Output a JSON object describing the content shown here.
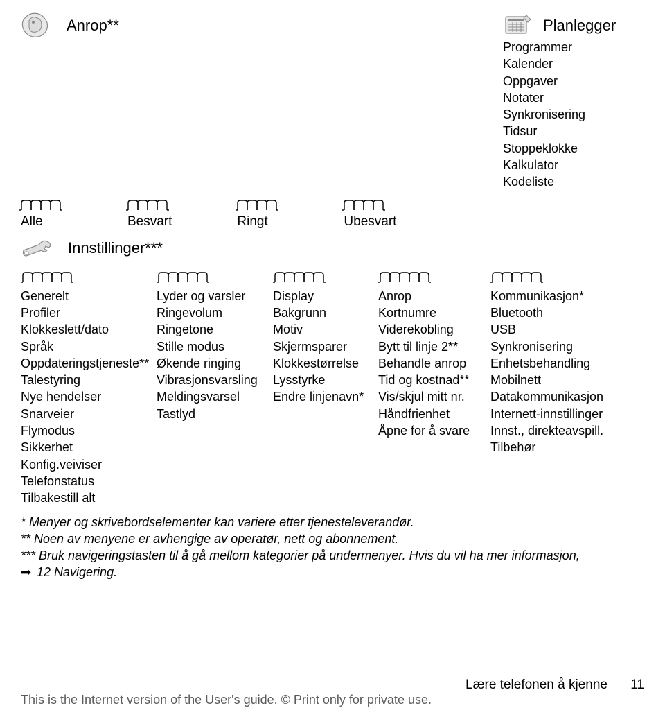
{
  "colors": {
    "text": "#000000",
    "icon_stroke": "#8a8a8a",
    "icon_fill": "#dcdcdc",
    "footer_gray": "#5b5b5b",
    "background": "#ffffff"
  },
  "fonts": {
    "body_size_pt": 14,
    "title_size_pt": 16
  },
  "anrop_section": {
    "title": "Anrop**",
    "tabs": [
      "Alle",
      "Besvart",
      "Ringt",
      "Ubesvart"
    ],
    "tab_count_each_row": 4
  },
  "planner_section": {
    "title": "Planlegger",
    "items": [
      "Programmer",
      "Kalender",
      "Oppgaver",
      "Notater",
      "Synkronisering",
      "Tidsur",
      "Stoppeklokke",
      "Kalkulator",
      "Kodeliste"
    ]
  },
  "settings_section": {
    "title": "Innstillinger***",
    "columns": [
      {
        "tab_count": 5,
        "header": "Generelt",
        "items": [
          "Profiler",
          "Klokkeslett/dato",
          "Språk",
          "Oppdateringstjeneste**",
          "Talestyring",
          "Nye hendelser",
          "Snarveier",
          "Flymodus",
          "Sikkerhet",
          "Konfig.veiviser",
          "Telefonstatus",
          "Tilbakestill alt"
        ]
      },
      {
        "tab_count": 5,
        "header": "Lyder og varsler",
        "items": [
          "Ringevolum",
          "Ringetone",
          "Stille modus",
          "Økende ringing",
          "Vibrasjonsvarsling",
          "Meldingsvarsel",
          "Tastlyd"
        ]
      },
      {
        "tab_count": 5,
        "header": "Display",
        "items": [
          "Bakgrunn",
          "Motiv",
          "Skjermsparer",
          "Klokkestørrelse",
          "Lysstyrke",
          "Endre linjenavn*"
        ]
      },
      {
        "tab_count": 5,
        "header": "Anrop",
        "items": [
          "Kortnumre",
          "Viderekobling",
          "Bytt til linje 2**",
          "Behandle anrop",
          "Tid og kostnad**",
          "Vis/skjul mitt nr.",
          "Håndfrienhet",
          "Åpne for å svare"
        ]
      },
      {
        "tab_count": 5,
        "header": "Kommunikasjon*",
        "items": [
          "Bluetooth",
          "USB",
          "Synkronisering",
          "Enhetsbehandling",
          "Mobilnett",
          "Datakommunikasjon",
          "Internett-innstillinger",
          "Innst., direkteavspill.",
          "Tilbehør"
        ]
      }
    ]
  },
  "notes": {
    "line1": "* Menyer og skrivebordselementer kan variere etter tjenesteleverandør.",
    "line2": "** Noen av menyene er avhengige av operatør, nett og abonnement.",
    "line3": "*** Bruk navigeringstasten til å gå mellom kategorier på undermenyer. Hvis du vil ha mer informasjon,",
    "line4_ref": "12 Navigering.",
    "arrow_glyph": "➡"
  },
  "footer": {
    "section_title": "Lære telefonen å kjenne",
    "page_number": "11",
    "disclaimer": "This is the Internet version of the User's guide. © Print only for private use."
  }
}
